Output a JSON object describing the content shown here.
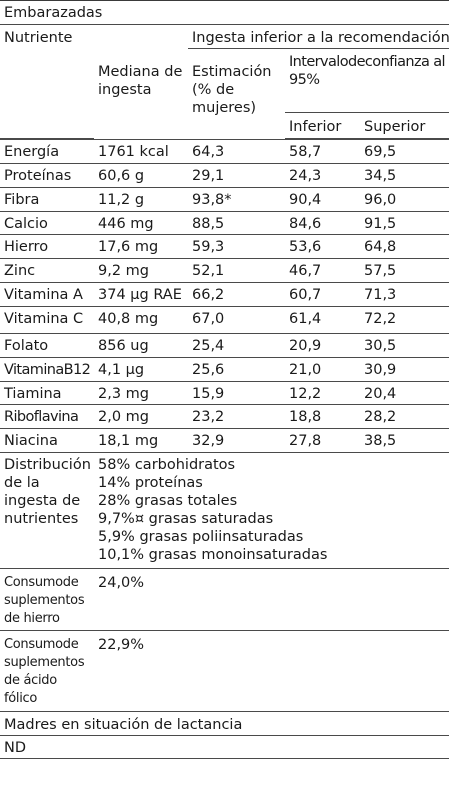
{
  "section_pregnant": "Embarazadas",
  "headers": {
    "nutrient": "Nutriente",
    "group": "Ingesta inferior a la recomendación",
    "median": "Mediana de ingesta",
    "estimate": "Estimación (% de mujeres)",
    "ci": "Intervalodeconfianza al 95%",
    "lower": "Inferior",
    "upper": "Superior"
  },
  "rows": [
    {
      "name": "Energía",
      "median": "1761 kcal",
      "est": "64,3",
      "lo": "58,7",
      "hi": "69,5"
    },
    {
      "name": "Proteínas",
      "median": "60,6 g",
      "est": "29,1",
      "lo": "24,3",
      "hi": "34,5"
    },
    {
      "name": "Fibra",
      "median": "11,2 g",
      "est": "93,8*",
      "lo": "90,4",
      "hi": "96,0"
    },
    {
      "name": "Calcio",
      "median": "446 mg",
      "est": "88,5",
      "lo": "84,6",
      "hi": "91,5"
    },
    {
      "name": "Hierro",
      "median": "17,6 mg",
      "est": "59,3",
      "lo": "53,6",
      "hi": "64,8"
    },
    {
      "name": "Zinc",
      "median": "9,2 mg",
      "est": "52,1",
      "lo": "46,7",
      "hi": "57,5"
    },
    {
      "name": "Vitamina A",
      "median": "374 µg RAE",
      "est": "66,2",
      "lo": "60,7",
      "hi": "71,3"
    },
    {
      "name": "Vitamina C",
      "median": "40,8 mg",
      "est": "67,0",
      "lo": "61,4",
      "hi": "72,2"
    },
    {
      "name": "Folato",
      "median": "856 ug",
      "est": "25,4",
      "lo": "20,9",
      "hi": "30,5"
    },
    {
      "name": "VitaminaB12",
      "median": "4,1 µg",
      "est": "25,6",
      "lo": "21,0",
      "hi": "30,9"
    },
    {
      "name": "Tiamina",
      "median": "2,3 mg",
      "est": "15,9",
      "lo": "12,2",
      "hi": "20,4"
    },
    {
      "name": "Riboflavina",
      "median": "2,0 mg",
      "est": "23,2",
      "lo": "18,8",
      "hi": "28,2"
    },
    {
      "name": "Niacina",
      "median": "18,1 mg",
      "est": "32,9",
      "lo": "27,8",
      "hi": "38,5"
    }
  ],
  "distribution": {
    "label": "Distribución de la ingesta de nutrientes",
    "lines": [
      "58% carbohidratos",
      "14% proteínas",
      "28% grasas totales",
      "9,7%¤ grasas saturadas",
      "5,9% grasas poliinsaturadas",
      "10,1% grasas monoinsaturadas"
    ]
  },
  "iron_supp": {
    "label": "Consumode suplementos de hierro",
    "value": "24,0%"
  },
  "folic_supp": {
    "label": "Consumode suplementos de ácido fólico",
    "value": "22,9%"
  },
  "section_lactating": "Madres en situación de lactancia",
  "nd": "ND"
}
